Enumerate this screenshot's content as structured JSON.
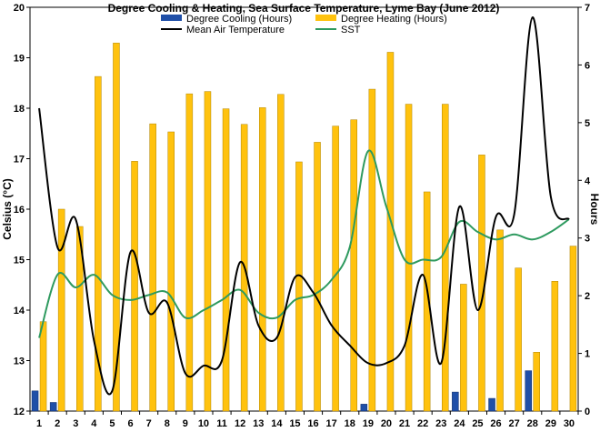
{
  "chart_data": {
    "type": "bar",
    "title": "Degree Cooling & Heating, Sea Surface Temperature, Lyme Bay (June 2012)",
    "ylabel": "Celsius (°C)",
    "y2label": "Hours",
    "xlabel": "",
    "categories": [
      "1",
      "2",
      "3",
      "4",
      "5",
      "6",
      "7",
      "8",
      "9",
      "10",
      "11",
      "12",
      "13",
      "14",
      "15",
      "16",
      "17",
      "18",
      "19",
      "20",
      "21",
      "22",
      "23",
      "24",
      "25",
      "26",
      "27",
      "28",
      "29",
      "30"
    ],
    "ylim": [
      12,
      20
    ],
    "y2lim": [
      0,
      7
    ],
    "y_ticks": [
      "12",
      "13",
      "14",
      "15",
      "16",
      "17",
      "18",
      "19",
      "20"
    ],
    "y2_ticks": [
      "0",
      "1",
      "2",
      "3",
      "4",
      "5",
      "6",
      "7"
    ],
    "grid": false,
    "legend_position": "top",
    "series": [
      {
        "name": "Degree Cooling (Hours)",
        "type": "bar",
        "axis": "right",
        "color": "#1f4fa8",
        "values": [
          0.35,
          0.15,
          0,
          0,
          0,
          0,
          0,
          0,
          0,
          0,
          0,
          0,
          0,
          0,
          0,
          0,
          0,
          0,
          0.12,
          0,
          0,
          0,
          0,
          0.33,
          0,
          0.22,
          0,
          0.7,
          0,
          0
        ]
      },
      {
        "name": "Degree Heating (Hours)",
        "type": "bar",
        "axis": "right",
        "color": "#ffc20e",
        "values": [
          1.55,
          3.5,
          3.2,
          5.8,
          6.38,
          4.33,
          4.98,
          4.84,
          5.5,
          5.54,
          5.24,
          4.97,
          5.26,
          5.49,
          4.32,
          4.66,
          4.94,
          5.05,
          5.58,
          6.22,
          5.32,
          3.8,
          5.32,
          2.2,
          4.44,
          3.14,
          2.48,
          1.02,
          2.25,
          2.86
        ]
      },
      {
        "name": "Mean Air Temperature",
        "type": "line",
        "axis": "left",
        "color": "#000000",
        "values": [
          18.0,
          15.25,
          15.8,
          13.4,
          12.4,
          15.15,
          13.95,
          14.15,
          12.75,
          12.9,
          13.0,
          14.95,
          13.7,
          13.45,
          14.65,
          14.35,
          13.7,
          13.3,
          12.95,
          12.95,
          13.3,
          14.7,
          12.95,
          16.05,
          14.0,
          15.85,
          15.9,
          19.8,
          16.25,
          15.8
        ]
      },
      {
        "name": "SST",
        "type": "line",
        "axis": "left",
        "color": "#2e9a5f",
        "values": [
          13.45,
          14.7,
          14.45,
          14.7,
          14.3,
          14.2,
          14.3,
          14.35,
          13.85,
          14.0,
          14.2,
          14.4,
          13.95,
          13.85,
          14.2,
          14.3,
          14.6,
          15.25,
          17.15,
          16.05,
          15.0,
          15.0,
          15.05,
          15.75,
          15.55,
          15.4,
          15.5,
          15.4,
          15.55,
          15.8
        ]
      }
    ]
  }
}
